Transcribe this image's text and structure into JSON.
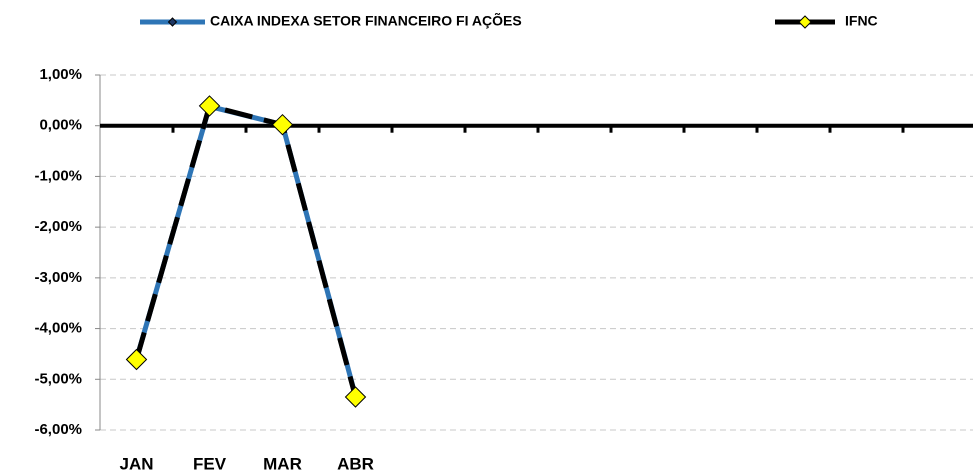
{
  "chart_data": {
    "type": "line",
    "categories": [
      "JAN",
      "FEV",
      "MAR",
      "ABR",
      null,
      null,
      null,
      null,
      null,
      null,
      null,
      null
    ],
    "series": [
      {
        "name": "CAIXA INDEXA SETOR FINANCEIRO FI AÇÕES",
        "color": "#2e75b6",
        "marker_color": "#1f3864",
        "values": [
          -4.6,
          0.38,
          0.02,
          -5.33,
          null,
          null,
          null,
          null,
          null,
          null,
          null,
          null
        ]
      },
      {
        "name": "IFNC",
        "color": "#000000",
        "marker_color": "#ffff00",
        "values": [
          -4.61,
          0.39,
          0.02,
          -5.35,
          null,
          null,
          null,
          null,
          null,
          null,
          null,
          null
        ]
      }
    ],
    "ylim": [
      -6,
      1
    ],
    "yticks": [
      {
        "value": -6,
        "label": "-6,00%"
      },
      {
        "value": -5,
        "label": "-5,00%"
      },
      {
        "value": -4,
        "label": "-4,00%"
      },
      {
        "value": -3,
        "label": "-3,00%"
      },
      {
        "value": -2,
        "label": "-2,00%"
      },
      {
        "value": -1,
        "label": "-1,00%"
      },
      {
        "value": 0,
        "label": "0,00%"
      },
      {
        "value": 1,
        "label": "1,00%"
      }
    ],
    "grid": true,
    "legend": "top"
  }
}
